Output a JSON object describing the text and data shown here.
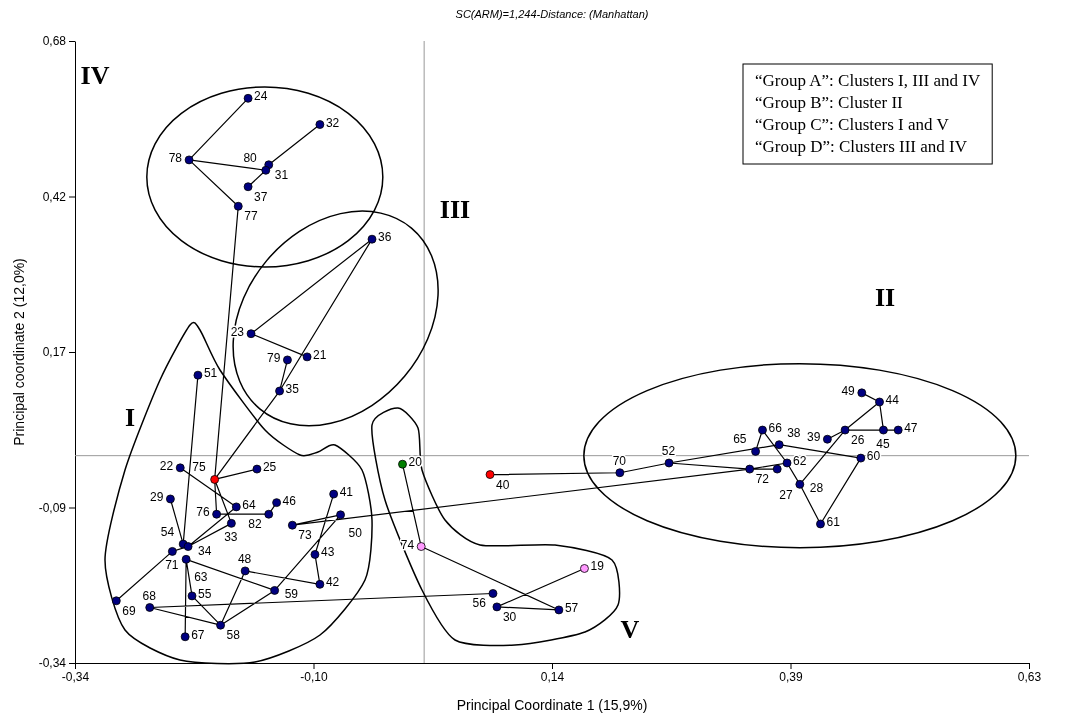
{
  "chart_data": {
    "type": "scatter",
    "title": "SC(ARM)=1,244-Distance: (Manhattan)",
    "xlabel": "Principal Coordinate 1 (15,9%)",
    "ylabel": "Principal coordinate 2 (12,0%)",
    "xlim": [
      -0.34,
      0.63
    ],
    "ylim": [
      -0.34,
      0.68
    ],
    "xticks": [
      {
        "value": -0.34,
        "label": "-0,34"
      },
      {
        "value": -0.0975,
        "label": "-0,10"
      },
      {
        "value": 0.145,
        "label": "0,14"
      },
      {
        "value": 0.3875,
        "label": "0,39"
      },
      {
        "value": 0.63,
        "label": "0,63"
      }
    ],
    "yticks": [
      {
        "value": -0.34,
        "label": "-0,34"
      },
      {
        "value": -0.085,
        "label": "-0,09"
      },
      {
        "value": 0.17,
        "label": "0,17"
      },
      {
        "value": 0.425,
        "label": "0,42"
      },
      {
        "value": 0.68,
        "label": "0,68"
      }
    ],
    "grid": false,
    "marker": "circle",
    "ref_lines": [
      {
        "axis": "x",
        "value": 0.015,
        "color": "#999999"
      },
      {
        "axis": "y",
        "value": 0,
        "color": "#999999"
      }
    ],
    "series": [
      {
        "type": "line",
        "color": "#000000",
        "line_style": "solid",
        "marker": "none",
        "x": [
          -0.164,
          -0.224,
          null,
          -0.224,
          -0.146,
          null,
          -0.146,
          -0.143,
          null,
          -0.143,
          -0.091,
          null,
          -0.164,
          -0.146,
          null,
          -0.224,
          -0.174,
          null,
          -0.174,
          -0.198,
          null,
          -0.038,
          -0.161,
          null,
          -0.038,
          -0.132,
          null,
          -0.161,
          -0.104,
          null,
          -0.124,
          -0.132,
          null,
          -0.132,
          -0.198,
          null,
          -0.215,
          -0.23,
          null,
          -0.233,
          -0.176,
          null,
          -0.198,
          -0.155,
          null,
          -0.198,
          -0.196,
          null,
          -0.198,
          -0.181,
          null,
          -0.196,
          -0.143,
          null,
          -0.176,
          -0.225,
          null,
          -0.135,
          -0.143,
          null,
          -0.181,
          -0.225,
          null,
          -0.243,
          -0.23,
          null,
          -0.241,
          -0.298,
          null,
          -0.241,
          -0.225,
          null,
          -0.227,
          -0.137,
          null,
          -0.167,
          -0.091,
          null,
          -0.167,
          -0.192,
          null,
          -0.096,
          -0.091,
          null,
          -0.077,
          -0.096,
          null,
          -0.07,
          -0.137,
          null,
          -0.137,
          -0.192,
          null,
          -0.192,
          -0.221,
          null,
          -0.221,
          -0.227,
          null,
          -0.228,
          -0.227,
          null,
          -0.264,
          -0.192,
          null,
          -0.264,
          0.085,
          null,
          -0.119,
          0.346,
          null,
          -0.007,
          0.012,
          null,
          0.012,
          0.152,
          null,
          0.089,
          0.152,
          null,
          0.089,
          0.178,
          null,
          0.082,
          0.214,
          null,
          0.214,
          0.264,
          null,
          0.264,
          0.376,
          null,
          0.264,
          0.346,
          null,
          0.346,
          0.384,
          null,
          0.352,
          0.359,
          null,
          0.359,
          0.384,
          null,
          0.384,
          0.397,
          null,
          0.397,
          0.418,
          null,
          0.346,
          0.374,
          null,
          0.376,
          0.459,
          null,
          0.459,
          0.418,
          null,
          0.443,
          0.397,
          null,
          0.443,
          0.497,
          null,
          0.443,
          0.478,
          null,
          0.478,
          0.46,
          null,
          0.478,
          0.482,
          null,
          0.425,
          0.443,
          null,
          -0.119,
          -0.07,
          null
        ],
        "values": [
          0.586,
          0.485,
          null,
          0.485,
          0.468,
          null,
          0.468,
          0.477,
          null,
          0.477,
          0.543,
          null,
          0.441,
          0.468,
          null,
          0.485,
          0.409,
          null,
          0.409,
          -0.039,
          null,
          0.355,
          0.2,
          null,
          0.355,
          0.106,
          null,
          0.2,
          0.162,
          null,
          0.157,
          0.106,
          null,
          0.106,
          -0.039,
          null,
          0.132,
          -0.145,
          null,
          -0.02,
          -0.084,
          null,
          -0.039,
          -0.022,
          null,
          -0.039,
          -0.096,
          null,
          -0.039,
          -0.111,
          null,
          -0.096,
          -0.096,
          null,
          -0.084,
          -0.149,
          null,
          -0.077,
          -0.096,
          null,
          -0.111,
          -0.149,
          null,
          -0.071,
          -0.145,
          null,
          -0.157,
          -0.238,
          null,
          -0.157,
          -0.149,
          null,
          -0.17,
          -0.221,
          null,
          -0.189,
          -0.211,
          null,
          -0.189,
          -0.278,
          null,
          -0.162,
          -0.211,
          null,
          -0.063,
          -0.162,
          null,
          -0.097,
          -0.221,
          null,
          -0.221,
          -0.278,
          null,
          -0.278,
          -0.23,
          null,
          -0.23,
          -0.17,
          null,
          -0.297,
          -0.17,
          null,
          -0.249,
          -0.278,
          null,
          -0.249,
          -0.226,
          null,
          -0.114,
          -0.022,
          null,
          -0.014,
          -0.149,
          null,
          -0.149,
          -0.253,
          null,
          -0.248,
          -0.253,
          null,
          -0.248,
          -0.185,
          null,
          -0.031,
          -0.028,
          null,
          -0.028,
          -0.012,
          null,
          -0.012,
          0.018,
          null,
          -0.012,
          -0.022,
          null,
          -0.022,
          -0.012,
          null,
          0.007,
          0.042,
          null,
          0.042,
          -0.012,
          null,
          -0.012,
          -0.047,
          null,
          -0.047,
          -0.112,
          null,
          -0.022,
          -0.022,
          null,
          0.018,
          -0.004,
          null,
          -0.004,
          -0.112,
          null,
          0.042,
          -0.047,
          null,
          0.042,
          0.042,
          null,
          0.042,
          0.088,
          null,
          0.088,
          0.103,
          null,
          0.088,
          0.042,
          null,
          0.027,
          0.042,
          null,
          -0.114,
          -0.097,
          null
        ]
      },
      {
        "x": [
          -0.164,
          -0.091,
          -0.224,
          -0.143,
          -0.146,
          -0.164,
          -0.174,
          -0.038,
          -0.161,
          -0.124,
          -0.104,
          -0.132,
          -0.215,
          -0.233,
          -0.198,
          -0.155,
          -0.243,
          -0.135,
          -0.176,
          -0.196,
          -0.143,
          -0.181,
          -0.119,
          -0.077,
          -0.07,
          -0.23,
          -0.225,
          -0.241,
          -0.227,
          -0.167,
          -0.096,
          -0.091,
          -0.137,
          -0.298,
          -0.264,
          -0.221,
          -0.192,
          -0.228,
          -0.007,
          0.082,
          0.012,
          0.178,
          0.085,
          0.089,
          0.152,
          0.214,
          0.264,
          0.352,
          0.359,
          0.376,
          0.346,
          0.374,
          0.384,
          0.397,
          0.418,
          0.425,
          0.443,
          0.459,
          0.46,
          0.478,
          0.482,
          0.497
        ],
        "values": [
          0.586,
          0.543,
          0.485,
          0.477,
          0.468,
          0.441,
          0.409,
          0.355,
          0.2,
          0.157,
          0.162,
          0.106,
          0.132,
          -0.02,
          -0.039,
          -0.022,
          -0.071,
          -0.077,
          -0.084,
          -0.096,
          -0.096,
          -0.111,
          -0.114,
          -0.063,
          -0.097,
          -0.145,
          -0.149,
          -0.157,
          -0.17,
          -0.189,
          -0.162,
          -0.211,
          -0.221,
          -0.238,
          -0.249,
          -0.23,
          -0.278,
          -0.297,
          -0.014,
          -0.031,
          -0.149,
          -0.185,
          -0.226,
          -0.248,
          -0.253,
          -0.028,
          -0.012,
          0.007,
          0.042,
          0.018,
          -0.022,
          -0.022,
          -0.012,
          -0.047,
          -0.112,
          0.027,
          0.042,
          -0.004,
          0.103,
          0.088,
          0.042,
          0.042
        ],
        "colors": [
          "#000080",
          "#000080",
          "#000080",
          "#000080",
          "#000080",
          "#000080",
          "#000080",
          "#000080",
          "#000080",
          "#000080",
          "#000080",
          "#000080",
          "#000080",
          "#000080",
          "#ff0000",
          "#000080",
          "#000080",
          "#000080",
          "#000080",
          "#000080",
          "#000080",
          "#000080",
          "#000080",
          "#000080",
          "#000080",
          "#000080",
          "#000080",
          "#000080",
          "#000080",
          "#000080",
          "#000080",
          "#000080",
          "#000080",
          "#000080",
          "#000080",
          "#000080",
          "#000080",
          "#000080",
          "#008000",
          "#ff0000",
          "#ff99ff",
          "#ff99ff",
          "#000080",
          "#000080",
          "#000080",
          "#000080",
          "#000080",
          "#000080",
          "#000080",
          "#000080",
          "#000080",
          "#000080",
          "#000080",
          "#000080",
          "#000080",
          "#000080",
          "#000080",
          "#000080",
          "#000080",
          "#000080",
          "#000080",
          "#000080"
        ]
      }
    ],
    "annotations": [
      {
        "text": "24",
        "x": -0.164,
        "y": 0.586
      },
      {
        "text": "32",
        "x": -0.091,
        "y": 0.543
      },
      {
        "text": "78",
        "x": -0.224,
        "y": 0.485
      },
      {
        "text": "31",
        "x": -0.143,
        "y": 0.477
      },
      {
        "text": "80",
        "x": -0.146,
        "y": 0.468
      },
      {
        "text": "37",
        "x": -0.164,
        "y": 0.441
      },
      {
        "text": "77",
        "x": -0.174,
        "y": 0.409
      },
      {
        "text": "36",
        "x": -0.038,
        "y": 0.355
      },
      {
        "text": "23",
        "x": -0.161,
        "y": 0.2
      },
      {
        "text": "79",
        "x": -0.124,
        "y": 0.157
      },
      {
        "text": "21",
        "x": -0.104,
        "y": 0.162
      },
      {
        "text": "35",
        "x": -0.132,
        "y": 0.106
      },
      {
        "text": "51",
        "x": -0.215,
        "y": 0.132
      },
      {
        "text": "22",
        "x": -0.233,
        "y": -0.02
      },
      {
        "text": "75",
        "x": -0.198,
        "y": -0.039
      },
      {
        "text": "25",
        "x": -0.155,
        "y": -0.022
      },
      {
        "text": "29",
        "x": -0.243,
        "y": -0.071
      },
      {
        "text": "46",
        "x": -0.135,
        "y": -0.077
      },
      {
        "text": "64",
        "x": -0.176,
        "y": -0.084
      },
      {
        "text": "76",
        "x": -0.196,
        "y": -0.096
      },
      {
        "text": "82",
        "x": -0.143,
        "y": -0.096
      },
      {
        "text": "33",
        "x": -0.181,
        "y": -0.111
      },
      {
        "text": "73",
        "x": -0.119,
        "y": -0.114
      },
      {
        "text": "41",
        "x": -0.077,
        "y": -0.063
      },
      {
        "text": "50",
        "x": -0.07,
        "y": -0.097
      },
      {
        "text": "54",
        "x": -0.23,
        "y": -0.145
      },
      {
        "text": "34",
        "x": -0.225,
        "y": -0.149
      },
      {
        "text": "71",
        "x": -0.241,
        "y": -0.157
      },
      {
        "text": "63",
        "x": -0.227,
        "y": -0.17
      },
      {
        "text": "48",
        "x": -0.167,
        "y": -0.189
      },
      {
        "text": "43",
        "x": -0.096,
        "y": -0.162
      },
      {
        "text": "42",
        "x": -0.091,
        "y": -0.211
      },
      {
        "text": "59",
        "x": -0.137,
        "y": -0.221
      },
      {
        "text": "69",
        "x": -0.298,
        "y": -0.238
      },
      {
        "text": "68",
        "x": -0.264,
        "y": -0.249
      },
      {
        "text": "55",
        "x": -0.221,
        "y": -0.23
      },
      {
        "text": "58",
        "x": -0.192,
        "y": -0.278
      },
      {
        "text": "67",
        "x": -0.228,
        "y": -0.297
      },
      {
        "text": "20",
        "x": -0.007,
        "y": -0.014
      },
      {
        "text": "40",
        "x": 0.082,
        "y": -0.031
      },
      {
        "text": "74",
        "x": 0.012,
        "y": -0.149
      },
      {
        "text": "19",
        "x": 0.178,
        "y": -0.185
      },
      {
        "text": "56",
        "x": 0.085,
        "y": -0.226
      },
      {
        "text": "30",
        "x": 0.089,
        "y": -0.248
      },
      {
        "text": "57",
        "x": 0.152,
        "y": -0.253
      },
      {
        "text": "70",
        "x": 0.214,
        "y": -0.028
      },
      {
        "text": "52",
        "x": 0.264,
        "y": -0.012
      },
      {
        "text": "65",
        "x": 0.352,
        "y": 0.007
      },
      {
        "text": "66",
        "x": 0.359,
        "y": 0.042
      },
      {
        "text": "38",
        "x": 0.376,
        "y": 0.018
      },
      {
        "text": "72",
        "x": 0.346,
        "y": -0.022
      },
      {
        "text": "27",
        "x": 0.374,
        "y": -0.022
      },
      {
        "text": "62",
        "x": 0.384,
        "y": -0.012
      },
      {
        "text": "28",
        "x": 0.397,
        "y": -0.047
      },
      {
        "text": "61",
        "x": 0.418,
        "y": -0.112
      },
      {
        "text": "39",
        "x": 0.425,
        "y": 0.027
      },
      {
        "text": "26",
        "x": 0.443,
        "y": 0.042
      },
      {
        "text": "60",
        "x": 0.459,
        "y": -0.004
      },
      {
        "text": "49",
        "x": 0.46,
        "y": 0.103
      },
      {
        "text": "44",
        "x": 0.478,
        "y": 0.088
      },
      {
        "text": "45",
        "x": 0.482,
        "y": 0.042
      },
      {
        "text": "47",
        "x": 0.497,
        "y": 0.042
      },
      "I",
      "II",
      "III",
      "IV",
      "V",
      "“Group A”: Clusters I, III and IV",
      "“Group B”: Cluster II",
      "“Group C”: Clusters I and V",
      "“Group D”: Clusters III and IV"
    ]
  }
}
